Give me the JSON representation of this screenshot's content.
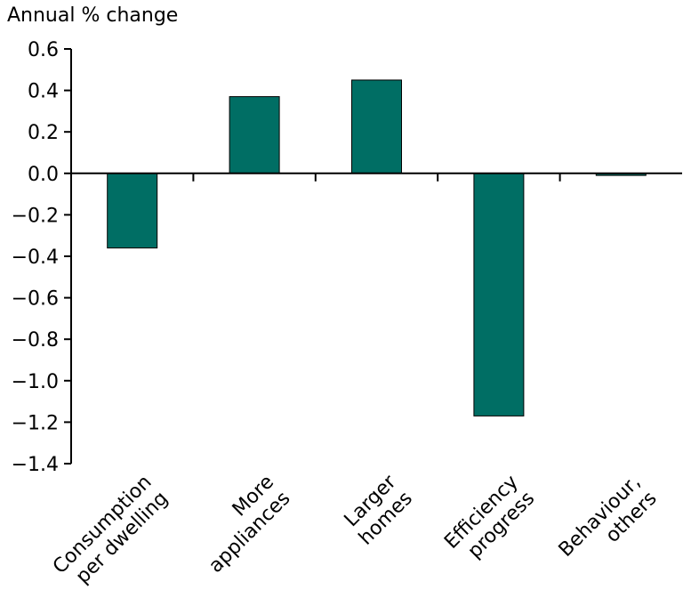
{
  "chart_data": {
    "type": "bar",
    "title": "",
    "ylabel": "Annual % change",
    "xlabel": "",
    "categories": [
      [
        "Consumption",
        "per dwelling"
      ],
      [
        "More",
        "appliances"
      ],
      [
        "Larger",
        "homes"
      ],
      [
        "Efficiency",
        "progress"
      ],
      [
        "Behaviour,",
        "others"
      ]
    ],
    "values": [
      -0.36,
      0.37,
      0.45,
      -1.17,
      -0.01
    ],
    "ylim": [
      -1.4,
      0.6
    ],
    "yticks": [
      0.6,
      0.4,
      0.2,
      0.0,
      -0.2,
      -0.4,
      -0.6,
      -0.8,
      -1.0,
      -1.2,
      -1.4
    ],
    "ytick_labels": [
      "0.6",
      "0.4",
      "0.2",
      "0.0",
      "-0.2",
      "-0.4",
      "-0.6",
      "-0.8",
      "-1.0",
      "-1.2",
      "-1.4"
    ],
    "bar_color": "#006e64",
    "grid": false,
    "legend": "none"
  }
}
